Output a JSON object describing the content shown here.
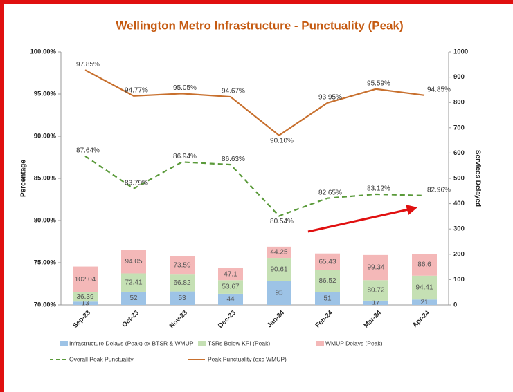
{
  "chart_data": {
    "type": "combo",
    "title": "Wellington Metro Infrastructure - Punctuality (Peak)",
    "ylabel": "Percentage",
    "y2label": "Services Delayed",
    "categories": [
      "Sep-23",
      "Oct-23",
      "Nov-23",
      "Dec-23",
      "Jan-24",
      "Feb-24",
      "Mar-24",
      "Apr-24"
    ],
    "ylim": [
      70,
      100
    ],
    "yticks": [
      {
        "value": 70,
        "label": "70.00%"
      },
      {
        "value": 75,
        "label": "75.00%"
      },
      {
        "value": 80,
        "label": "80.00%"
      },
      {
        "value": 85,
        "label": "85.00%"
      },
      {
        "value": 90,
        "label": "90.00%"
      },
      {
        "value": 95,
        "label": "95.00%"
      },
      {
        "value": 100,
        "label": "100.00%"
      }
    ],
    "y2lim": [
      0,
      1000
    ],
    "y2ticks": [
      0,
      100,
      200,
      300,
      400,
      500,
      600,
      700,
      800,
      900,
      1000
    ],
    "series": [
      {
        "name": "Infrastructure Delays (Peak) ex BTSR & WMUP",
        "type": "bar",
        "axis": "y2",
        "color": "#9dc3e6",
        "values": [
          13,
          52,
          53,
          44,
          95,
          51,
          17,
          21
        ]
      },
      {
        "name": "TSRs Below KPI (Peak)",
        "type": "bar",
        "axis": "y2",
        "color": "#c5e0b4",
        "values": [
          36.39,
          72.41,
          66.82,
          53.67,
          90.61,
          86.52,
          80.72,
          94.41
        ]
      },
      {
        "name": "WMUP Delays (Peak)",
        "type": "bar",
        "axis": "y2",
        "color": "#f4b8b8",
        "values": [
          102.04,
          94.05,
          73.59,
          47.1,
          44.25,
          65.43,
          99.34,
          86.6
        ]
      },
      {
        "name": "Overall Peak Punctuality",
        "type": "line",
        "dashed": true,
        "color": "#5a9a3a",
        "values": [
          87.64,
          83.79,
          86.94,
          86.63,
          80.54,
          82.65,
          83.12,
          82.96
        ],
        "value_labels": [
          "87.64%",
          "83.79%",
          "86.94%",
          "86.63%",
          "80.54%",
          "82.65%",
          "83.12%",
          "82.96%"
        ]
      },
      {
        "name": "Peak Punctuality (exc WMUP)",
        "type": "line",
        "dashed": false,
        "color": "#c8702e",
        "values": [
          97.85,
          94.77,
          95.05,
          94.67,
          90.1,
          93.95,
          95.59,
          94.85
        ],
        "value_labels": [
          "97.85%",
          "94.77%",
          "95.05%",
          "94.67%",
          "90.10%",
          "93.95%",
          "95.59%",
          "94.85%"
        ]
      }
    ]
  }
}
